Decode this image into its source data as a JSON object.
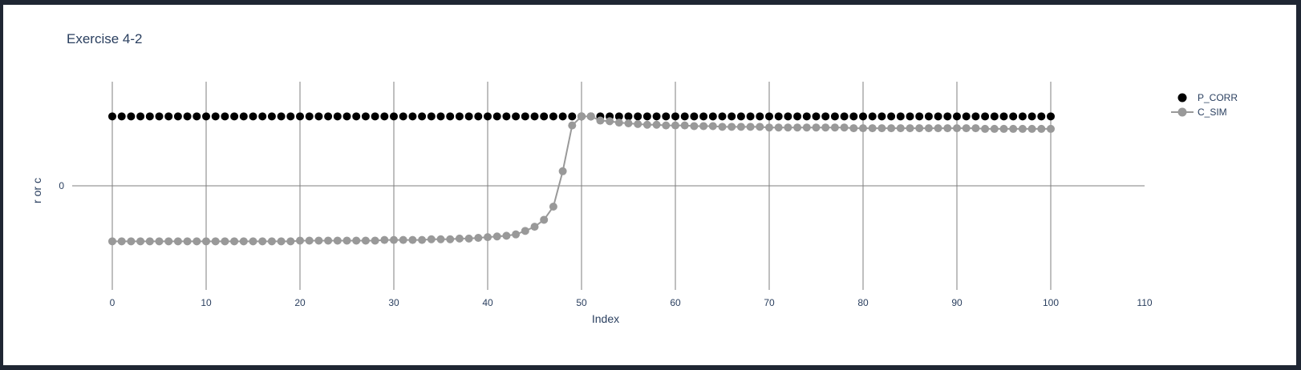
{
  "chart_data": {
    "type": "scatter",
    "title": "Exercise 4-2",
    "xlabel": "Index",
    "ylabel": "r or c",
    "xlim": [
      0,
      110
    ],
    "x_ticks": [
      0,
      10,
      20,
      30,
      40,
      50,
      60,
      70,
      80,
      90,
      100,
      110
    ],
    "y_ticks": [
      0
    ],
    "grid": {
      "x": true,
      "y": false
    },
    "legend_placement": "top-right",
    "colors": {
      "P_CORR": "#000000",
      "C_SIM": "#999999",
      "text": "#2a3f5f",
      "grid": "#7f7f7f"
    },
    "series": [
      {
        "name": "P_CORR",
        "mode": "markers",
        "x": [
          0,
          1,
          2,
          3,
          4,
          5,
          6,
          7,
          8,
          9,
          10,
          11,
          12,
          13,
          14,
          15,
          16,
          17,
          18,
          19,
          20,
          21,
          22,
          23,
          24,
          25,
          26,
          27,
          28,
          29,
          30,
          31,
          32,
          33,
          34,
          35,
          36,
          37,
          38,
          39,
          40,
          41,
          42,
          43,
          44,
          45,
          46,
          47,
          48,
          49,
          50,
          51,
          52,
          53,
          54,
          55,
          56,
          57,
          58,
          59,
          60,
          61,
          62,
          63,
          64,
          65,
          66,
          67,
          68,
          69,
          70,
          71,
          72,
          73,
          74,
          75,
          76,
          77,
          78,
          79,
          80,
          81,
          82,
          83,
          84,
          85,
          86,
          87,
          88,
          89,
          90,
          91,
          92,
          93,
          94,
          95,
          96,
          97,
          98,
          99,
          100
        ],
        "y": [
          1,
          1,
          1,
          1,
          1,
          1,
          1,
          1,
          1,
          1,
          1,
          1,
          1,
          1,
          1,
          1,
          1,
          1,
          1,
          1,
          1,
          1,
          1,
          1,
          1,
          1,
          1,
          1,
          1,
          1,
          1,
          1,
          1,
          1,
          1,
          1,
          1,
          1,
          1,
          1,
          1,
          1,
          1,
          1,
          1,
          1,
          1,
          1,
          1,
          1,
          1,
          1,
          1,
          1,
          1,
          1,
          1,
          1,
          1,
          1,
          1,
          1,
          1,
          1,
          1,
          1,
          1,
          1,
          1,
          1,
          1,
          1,
          1,
          1,
          1,
          1,
          1,
          1,
          1,
          1,
          1,
          1,
          1,
          1,
          1,
          1,
          1,
          1,
          1,
          1,
          1,
          1,
          1,
          1,
          1,
          1,
          1,
          1,
          1,
          1,
          1
        ]
      },
      {
        "name": "C_SIM",
        "mode": "lines+markers",
        "x": [
          0,
          1,
          2,
          3,
          4,
          5,
          6,
          7,
          8,
          9,
          10,
          11,
          12,
          13,
          14,
          15,
          16,
          17,
          18,
          19,
          20,
          21,
          22,
          23,
          24,
          25,
          26,
          27,
          28,
          29,
          30,
          31,
          32,
          33,
          34,
          35,
          36,
          37,
          38,
          39,
          40,
          41,
          42,
          43,
          44,
          45,
          46,
          47,
          48,
          49,
          50,
          51,
          52,
          53,
          54,
          55,
          56,
          57,
          58,
          59,
          60,
          61,
          62,
          63,
          64,
          65,
          66,
          67,
          68,
          69,
          70,
          71,
          72,
          73,
          74,
          75,
          76,
          77,
          78,
          79,
          80,
          81,
          82,
          83,
          84,
          85,
          86,
          87,
          88,
          89,
          90,
          91,
          92,
          93,
          94,
          95,
          96,
          97,
          98,
          99,
          100
        ],
        "y": [
          -0.8,
          -0.8,
          -0.8,
          -0.8,
          -0.8,
          -0.8,
          -0.8,
          -0.8,
          -0.8,
          -0.8,
          -0.8,
          -0.8,
          -0.8,
          -0.8,
          -0.8,
          -0.8,
          -0.8,
          -0.8,
          -0.8,
          -0.8,
          -0.79,
          -0.79,
          -0.79,
          -0.79,
          -0.79,
          -0.79,
          -0.79,
          -0.79,
          -0.79,
          -0.78,
          -0.78,
          -0.78,
          -0.78,
          -0.78,
          -0.77,
          -0.77,
          -0.77,
          -0.76,
          -0.76,
          -0.75,
          -0.74,
          -0.73,
          -0.72,
          -0.7,
          -0.65,
          -0.59,
          -0.49,
          -0.3,
          0.21,
          0.87,
          1.0,
          1.0,
          0.94,
          0.93,
          0.91,
          0.9,
          0.89,
          0.88,
          0.88,
          0.87,
          0.87,
          0.87,
          0.86,
          0.86,
          0.86,
          0.85,
          0.85,
          0.85,
          0.85,
          0.85,
          0.84,
          0.84,
          0.84,
          0.84,
          0.84,
          0.84,
          0.84,
          0.84,
          0.84,
          0.83,
          0.83,
          0.83,
          0.83,
          0.83,
          0.83,
          0.83,
          0.83,
          0.83,
          0.83,
          0.83,
          0.83,
          0.83,
          0.83,
          0.82,
          0.82,
          0.82,
          0.82,
          0.82,
          0.82,
          0.82,
          0.82
        ]
      }
    ]
  }
}
